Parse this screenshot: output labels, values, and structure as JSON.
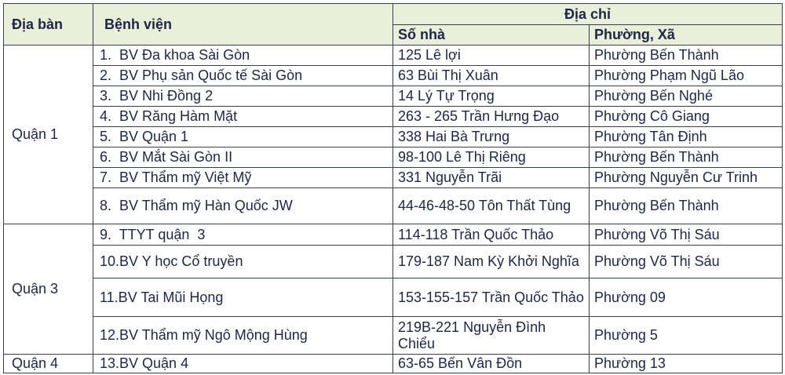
{
  "headers": {
    "district": "Địa bàn",
    "hospital": "Bệnh viện",
    "address": "Địa chỉ",
    "house_number": "Số nhà",
    "ward": "Phường, Xã"
  },
  "groups": [
    {
      "district": "Quận 1",
      "rows": [
        {
          "hospital": "1.  BV Đa khoa Sài Gòn",
          "house_number": "125 Lê lợi",
          "ward": "Phường Bến Thành"
        },
        {
          "hospital": "2.  BV Phụ sản Quốc tế Sài Gòn",
          "house_number": "63 Bùi Thị Xuân",
          "ward": "Phường Phạm Ngũ Lão"
        },
        {
          "hospital": "3.  BV Nhi Đồng 2",
          "house_number": "14 Lý Tự Trọng",
          "ward": "Phường Bến Nghé"
        },
        {
          "hospital": "4.  BV Răng Hàm Mặt",
          "house_number": "263 - 265 Trần Hưng Đạo",
          "ward": "Phường Cô Giang"
        },
        {
          "hospital": "5.  BV Quận 1",
          "house_number": "338 Hai Bà Trưng",
          "ward": "Phường Tân Định"
        },
        {
          "hospital": "6.  BV Mắt Sài Gòn II",
          "house_number": "98-100 Lê Thị Riêng",
          "ward": "Phường Bến Thành"
        },
        {
          "hospital": "7.  BV Thẩm mỹ Việt Mỹ",
          "house_number": "331 Nguyễn Trãi",
          "ward": "Phường Nguyễn Cư Trinh"
        },
        {
          "hospital": "8.  BV Thẩm mỹ Hàn Quốc JW",
          "house_number": "44-46-48-50 Tôn Thất Tùng",
          "ward": "Phường Bến Thành"
        }
      ]
    },
    {
      "district": "Quận 3",
      "rows": [
        {
          "hospital": "9.  TTYT quận  3",
          "house_number": "114-118 Trần Quốc Thảo",
          "ward": "Phường Võ Thị Sáu"
        },
        {
          "hospital": "10.BV Y học Cổ truyền",
          "house_number": "179-187 Nam Kỳ Khởi Nghĩa",
          "ward": "Phường Võ Thị Sáu"
        },
        {
          "hospital": "11.BV Tai Mũi Họng",
          "house_number": "153-155-157 Trần Quốc Thảo",
          "ward": "Phường 09"
        },
        {
          "hospital": "12.BV Thẩm mỹ Ngô Mộng Hùng",
          "house_number": "219B-221 Nguyễn Đình Chiểu",
          "ward": "Phường 5"
        }
      ]
    },
    {
      "district": "Quận 4",
      "rows": [
        {
          "hospital": "13.BV Quận 4",
          "house_number": "63-65 Bến Vân Đồn",
          "ward": "Phường 13"
        }
      ]
    }
  ]
}
